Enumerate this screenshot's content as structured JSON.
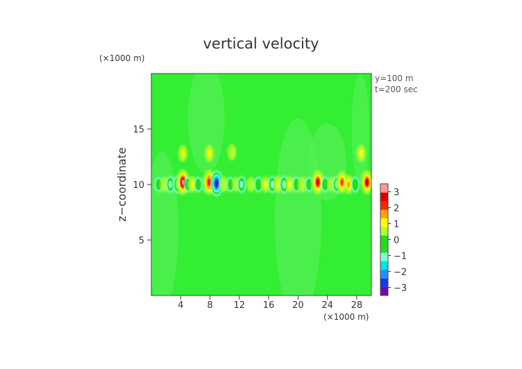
{
  "chart_data": {
    "type": "heatmap",
    "title": "vertical velocity",
    "xlabel": "",
    "x_unit": "(×1000 m)",
    "ylabel": "z−coordinate",
    "y_unit": "(×1000 m)",
    "annotations": [
      "y=100  m",
      "t=200  sec"
    ],
    "xlim": [
      0,
      30
    ],
    "ylim": [
      0,
      20
    ],
    "x_ticks": [
      4,
      8,
      12,
      16,
      20,
      24,
      28
    ],
    "y_ticks": [
      5,
      10,
      15
    ],
    "colorbar": {
      "min": -3.5,
      "max": 3.5,
      "ticks": [
        3,
        2,
        1,
        0,
        -1,
        -2,
        -3
      ],
      "colors": [
        "#6a0dad",
        "#2233ee",
        "#1e90ff",
        "#00e5e5",
        "#7fffd4",
        "#22dd22",
        "#22dd22",
        "#adff2f",
        "#ffff00",
        "#ffa500",
        "#ff2200",
        "#dd0000",
        "#ff9999"
      ]
    },
    "background_value": 0,
    "cells": [
      {
        "x": 1.0,
        "z": 10.0,
        "w": -0.6
      },
      {
        "x": 1.8,
        "z": 10.0,
        "w": 0.7
      },
      {
        "x": 2.6,
        "z": 10.0,
        "w": -1.0
      },
      {
        "x": 3.6,
        "z": 10.0,
        "w": -1.2
      },
      {
        "x": 4.3,
        "z": 10.2,
        "w": 3.0
      },
      {
        "x": 4.3,
        "z": 12.8,
        "w": 1.0
      },
      {
        "x": 5.0,
        "z": 10.0,
        "w": -0.8
      },
      {
        "x": 5.6,
        "z": 10.0,
        "w": 0.9
      },
      {
        "x": 6.4,
        "z": 10.0,
        "w": -0.7
      },
      {
        "x": 7.5,
        "z": 10.0,
        "w": -0.8
      },
      {
        "x": 7.9,
        "z": 10.2,
        "w": 2.8
      },
      {
        "x": 7.9,
        "z": 12.8,
        "w": 1.0
      },
      {
        "x": 8.9,
        "z": 10.1,
        "w": -3.0
      },
      {
        "x": 9.9,
        "z": 10.0,
        "w": 0.7
      },
      {
        "x": 10.8,
        "z": 10.0,
        "w": -0.6
      },
      {
        "x": 11.6,
        "z": 10.0,
        "w": 0.6
      },
      {
        "x": 12.3,
        "z": 10.0,
        "w": -1.0
      },
      {
        "x": 11.0,
        "z": 12.9,
        "w": 0.8
      },
      {
        "x": 13.6,
        "z": 10.0,
        "w": 0.6
      },
      {
        "x": 14.6,
        "z": 10.0,
        "w": -0.8
      },
      {
        "x": 15.6,
        "z": 10.0,
        "w": 0.9
      },
      {
        "x": 16.5,
        "z": 10.0,
        "w": -1.1
      },
      {
        "x": 17.3,
        "z": 10.0,
        "w": 1.0
      },
      {
        "x": 18.1,
        "z": 10.0,
        "w": -1.2
      },
      {
        "x": 18.9,
        "z": 10.0,
        "w": 0.9
      },
      {
        "x": 19.8,
        "z": 10.0,
        "w": -0.8
      },
      {
        "x": 20.6,
        "z": 10.0,
        "w": 0.8
      },
      {
        "x": 21.5,
        "z": 10.0,
        "w": -0.7
      },
      {
        "x": 22.7,
        "z": 10.2,
        "w": 2.6
      },
      {
        "x": 23.7,
        "z": 10.0,
        "w": -0.8
      },
      {
        "x": 24.6,
        "z": 10.0,
        "w": 0.7
      },
      {
        "x": 25.3,
        "z": 10.0,
        "w": -1.0
      },
      {
        "x": 26.0,
        "z": 10.2,
        "w": 2.2
      },
      {
        "x": 26.9,
        "z": 10.0,
        "w": 1.5
      },
      {
        "x": 27.8,
        "z": 10.0,
        "w": -0.8
      },
      {
        "x": 28.6,
        "z": 12.8,
        "w": 1.1
      },
      {
        "x": 29.4,
        "z": 10.2,
        "w": 2.6
      }
    ]
  }
}
